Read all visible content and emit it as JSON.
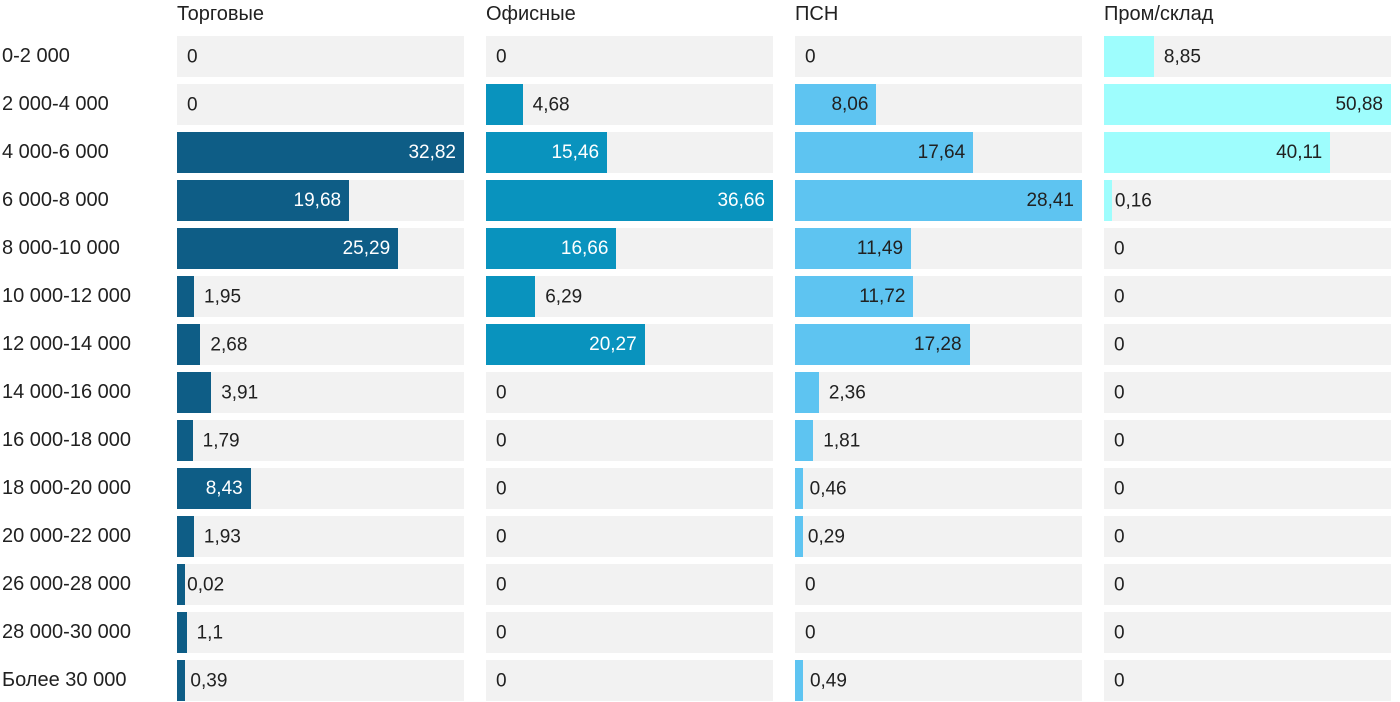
{
  "chart_data": {
    "type": "bar",
    "orientation": "horizontal",
    "normalization": "per-column-max",
    "track_color": "#f2f2f2",
    "text_color": "#212121",
    "categories": [
      "0-2 000",
      "2 000-4 000",
      "4 000-6 000",
      "6 000-8 000",
      "8 000-10 000",
      "10 000-12 000",
      "12 000-14 000",
      "14 000-16 000",
      "16 000-18 000",
      "18 000-20 000",
      "20 000-22 000",
      "26 000-28 000",
      "28 000-30 000",
      "Более 30 000"
    ],
    "series": [
      {
        "name": "Торговые",
        "color": "#0e5d86",
        "label_inside_color": "#ffffff",
        "values": [
          0,
          0,
          32.82,
          19.68,
          25.29,
          1.95,
          2.68,
          3.91,
          1.79,
          8.43,
          1.93,
          0.02,
          1.1,
          0.39
        ],
        "values_display": [
          "0",
          "0",
          "32,82",
          "19,68",
          "25,29",
          "1,95",
          "2,68",
          "3,91",
          "1,79",
          "8,43",
          "1,93",
          "0,02",
          "1,1",
          "0,39"
        ]
      },
      {
        "name": "Офисные",
        "color": "#0993be",
        "label_inside_color": "#ffffff",
        "values": [
          0,
          4.68,
          15.46,
          36.66,
          16.66,
          6.29,
          20.27,
          0,
          0,
          0,
          0,
          0,
          0,
          0
        ],
        "values_display": [
          "0",
          "4,68",
          "15,46",
          "36,66",
          "16,66",
          "6,29",
          "20,27",
          "0",
          "0",
          "0",
          "0",
          "0",
          "0",
          "0"
        ]
      },
      {
        "name": "ПСН",
        "color": "#5ec4f1",
        "label_inside_color": "#212121",
        "values": [
          0,
          8.06,
          17.64,
          28.41,
          11.49,
          11.72,
          17.28,
          2.36,
          1.81,
          0.46,
          0.29,
          0,
          0,
          0.49
        ],
        "values_display": [
          "0",
          "8,06",
          "17,64",
          "28,41",
          "11,49",
          "11,72",
          "17,28",
          "2,36",
          "1,81",
          "0,46",
          "0,29",
          "0",
          "0",
          "0,49"
        ]
      },
      {
        "name": "Пром/склад",
        "color": "#9efdfd",
        "label_inside_color": "#212121",
        "values": [
          8.85,
          50.88,
          40.11,
          0.16,
          0,
          0,
          0,
          0,
          0,
          0,
          0,
          0,
          0,
          0
        ],
        "values_display": [
          "8,85",
          "50,88",
          "40,11",
          "0,16",
          "0",
          "0",
          "0",
          "0",
          "0",
          "0",
          "0",
          "0",
          "0",
          "0"
        ]
      }
    ]
  }
}
